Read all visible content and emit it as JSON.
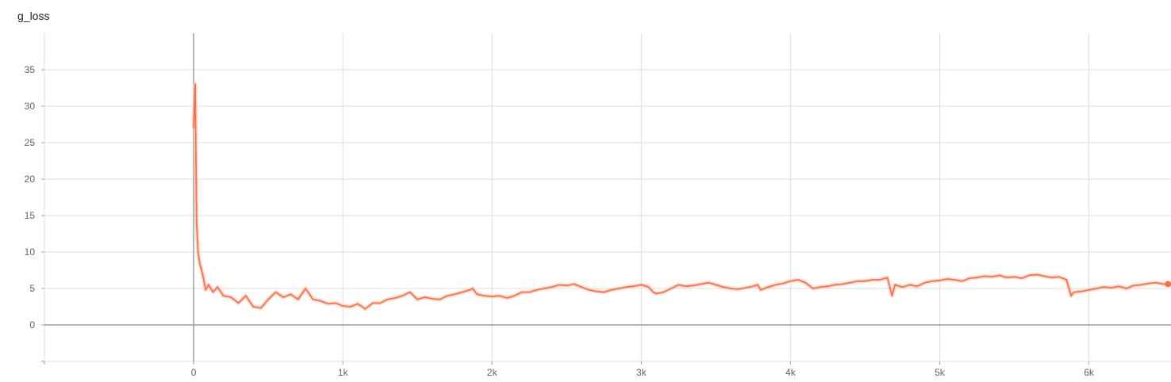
{
  "chart_data": {
    "type": "line",
    "title": "g_loss",
    "xlabel": "",
    "ylabel": "",
    "x_ticks": [
      0,
      1000,
      2000,
      3000,
      4000,
      5000,
      6000
    ],
    "x_tick_labels": [
      "0",
      "1k",
      "2k",
      "3k",
      "4k",
      "5k",
      "6k"
    ],
    "y_ticks": [
      0,
      5,
      10,
      15,
      20,
      25,
      30,
      35
    ],
    "y_tick_labels": [
      "0",
      "5",
      "10",
      "15",
      "20",
      "25",
      "30",
      "35"
    ],
    "xlim": [
      -1000,
      6550
    ],
    "ylim": [
      -5,
      40
    ],
    "grid": true,
    "colors": {
      "smoothed": "#ff7043",
      "raw": "#ffcbbd",
      "grid": "#dddddd",
      "axis": "#9e9e9e"
    },
    "series": [
      {
        "x": [
          0,
          10,
          20,
          30,
          40,
          60,
          80,
          100,
          130,
          160,
          200,
          250,
          300,
          350,
          400,
          450,
          500,
          550,
          600,
          650,
          700,
          750,
          800,
          850,
          900,
          950,
          1000,
          1050,
          1100,
          1150,
          1200,
          1250,
          1300,
          1350,
          1400,
          1450,
          1500,
          1550,
          1600,
          1650,
          1700,
          1750,
          1800,
          1850,
          1870,
          1900,
          1950,
          2000,
          2050,
          2100,
          2150,
          2200,
          2250,
          2300,
          2350,
          2400,
          2450,
          2500,
          2550,
          2600,
          2650,
          2700,
          2750,
          2800,
          2850,
          2900,
          2950,
          3000,
          3050,
          3080,
          3100,
          3150,
          3200,
          3250,
          3300,
          3350,
          3400,
          3450,
          3500,
          3550,
          3600,
          3650,
          3700,
          3750,
          3780,
          3800,
          3850,
          3900,
          3950,
          4000,
          4050,
          4100,
          4150,
          4200,
          4250,
          4300,
          4350,
          4400,
          4450,
          4500,
          4550,
          4600,
          4650,
          4680,
          4700,
          4750,
          4800,
          4850,
          4900,
          4950,
          5000,
          5050,
          5100,
          5150,
          5200,
          5250,
          5300,
          5350,
          5400,
          5450,
          5500,
          5550,
          5600,
          5650,
          5700,
          5750,
          5800,
          5850,
          5880,
          5900,
          5950,
          6000,
          6050,
          6100,
          6150,
          6200,
          6250,
          6300,
          6350,
          6400,
          6450,
          6500,
          6530
        ],
        "values": [
          27,
          33,
          14,
          10,
          8.5,
          7.0,
          4.8,
          5.5,
          4.5,
          5.2,
          4.0,
          3.8,
          3.0,
          4.0,
          2.5,
          2.3,
          3.5,
          4.5,
          3.8,
          4.2,
          3.5,
          5.0,
          3.5,
          3.3,
          2.9,
          3.0,
          2.6,
          2.5,
          2.9,
          2.2,
          3.0,
          3.0,
          3.5,
          3.7,
          4.0,
          4.5,
          3.5,
          3.8,
          3.6,
          3.5,
          4.0,
          4.2,
          4.5,
          4.8,
          5.0,
          4.2,
          4.0,
          3.9,
          4.0,
          3.7,
          4.0,
          4.5,
          4.5,
          4.8,
          5.0,
          5.2,
          5.5,
          5.4,
          5.6,
          5.2,
          4.8,
          4.6,
          4.5,
          4.8,
          5.0,
          5.2,
          5.3,
          5.5,
          5.2,
          4.5,
          4.3,
          4.5,
          5.0,
          5.5,
          5.3,
          5.4,
          5.6,
          5.8,
          5.5,
          5.2,
          5.0,
          4.9,
          5.1,
          5.3,
          5.5,
          4.8,
          5.2,
          5.5,
          5.7,
          6.0,
          6.2,
          5.8,
          5.0,
          5.2,
          5.3,
          5.5,
          5.6,
          5.8,
          6.0,
          6.0,
          6.2,
          6.2,
          6.5,
          4.0,
          5.5,
          5.2,
          5.5,
          5.3,
          5.8,
          6.0,
          6.1,
          6.3,
          6.2,
          6.0,
          6.4,
          6.5,
          6.7,
          6.6,
          6.8,
          6.5,
          6.6,
          6.4,
          6.8,
          6.9,
          6.7,
          6.5,
          6.6,
          6.2,
          4.0,
          4.5,
          4.6,
          4.8,
          5.0,
          5.2,
          5.1,
          5.3,
          5.0,
          5.4,
          5.5,
          5.7,
          5.8,
          5.6,
          5.6
        ]
      }
    ]
  }
}
